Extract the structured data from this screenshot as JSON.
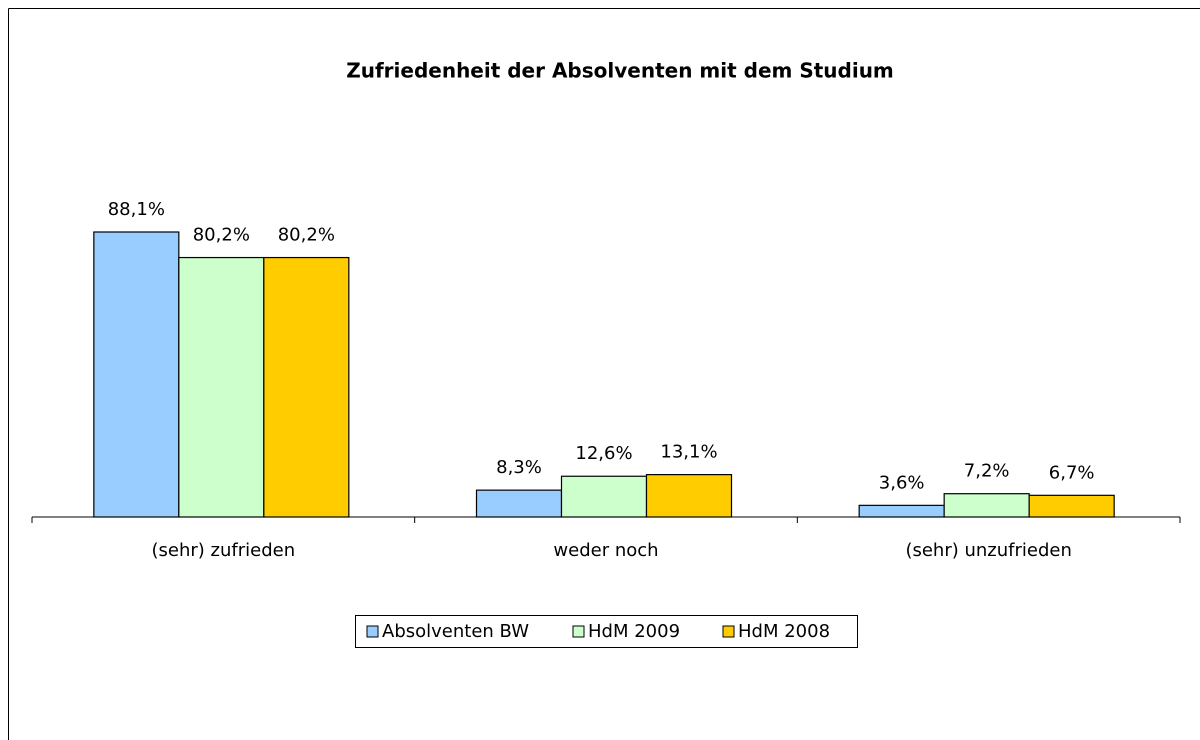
{
  "chart_data": {
    "type": "bar",
    "title": "Zufriedenheit der Absolventen mit dem Studium",
    "categories": [
      "(sehr) zufrieden",
      "weder noch",
      "(sehr) unzufrieden"
    ],
    "series": [
      {
        "name": "Absolventen BW",
        "color": "#99ccff",
        "values": [
          88.1,
          8.3,
          3.6
        ],
        "value_labels": [
          "88,1%",
          "8,3%",
          "3,6%"
        ]
      },
      {
        "name": "HdM 2009",
        "color": "#ccffcc",
        "values": [
          80.2,
          12.6,
          7.2
        ],
        "value_labels": [
          "80,2%",
          "12,6%",
          "7,2%"
        ]
      },
      {
        "name": "HdM 2008",
        "color": "#ffcc00",
        "values": [
          80.2,
          13.1,
          6.7
        ],
        "value_labels": [
          "80,2%",
          "13,1%",
          "6,7%"
        ]
      }
    ],
    "ylim": [
      0,
      100
    ],
    "legend": "bottom"
  }
}
